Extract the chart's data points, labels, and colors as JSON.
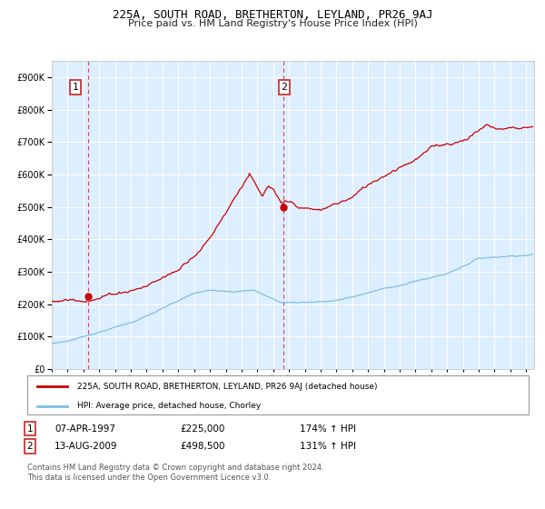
{
  "title1": "225A, SOUTH ROAD, BRETHERTON, LEYLAND, PR26 9AJ",
  "title2": "Price paid vs. HM Land Registry's House Price Index (HPI)",
  "legend_line1": "225A, SOUTH ROAD, BRETHERTON, LEYLAND, PR26 9AJ (detached house)",
  "legend_line2": "HPI: Average price, detached house, Chorley",
  "annotation1_label": "1",
  "annotation1_date": "07-APR-1997",
  "annotation1_price": "£225,000",
  "annotation1_hpi": "174% ↑ HPI",
  "annotation2_label": "2",
  "annotation2_date": "13-AUG-2009",
  "annotation2_price": "£498,500",
  "annotation2_hpi": "131% ↑ HPI",
  "footer": "Contains HM Land Registry data © Crown copyright and database right 2024.\nThis data is licensed under the Open Government Licence v3.0.",
  "hpi_color": "#7fbfdf",
  "price_color": "#cc0000",
  "marker_color": "#cc0000",
  "dashed_color": "#dd4444",
  "bg_color": "#ddeeff",
  "grid_color": "#ffffff",
  "ylim_min": 0,
  "ylim_max": 950000,
  "sale1_year": 1997.27,
  "sale1_value": 225000,
  "sale2_year": 2009.62,
  "sale2_value": 498500,
  "xmin": 1995.0,
  "xmax": 2025.5
}
